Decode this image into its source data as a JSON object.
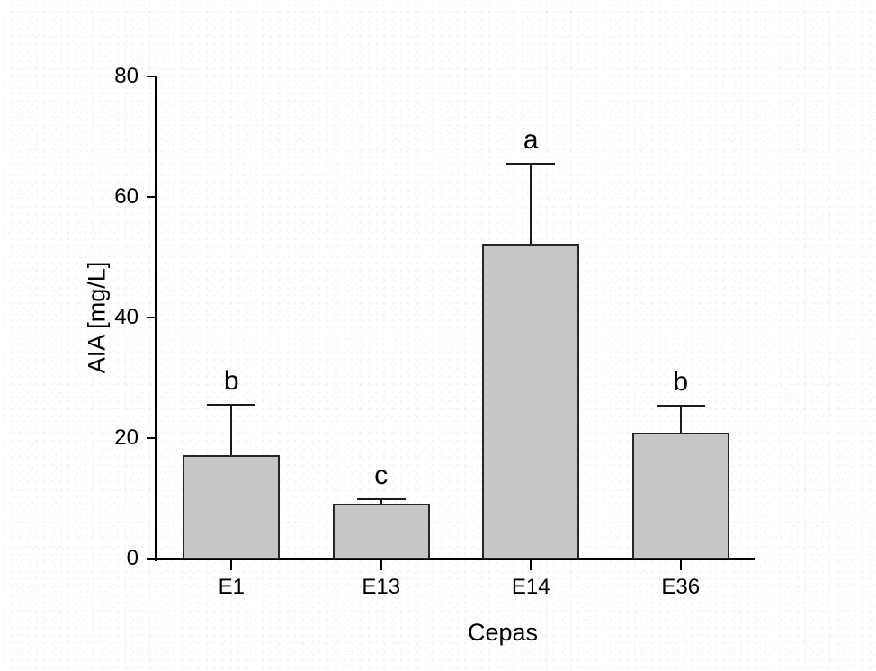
{
  "chart_data": {
    "type": "bar",
    "title": "",
    "xlabel": "Cepas",
    "ylabel": "AIA [mg/L]",
    "categories": [
      "E1",
      "E13",
      "E14",
      "E36"
    ],
    "values": [
      17.1,
      9.1,
      52.2,
      20.9
    ],
    "error_upper": [
      8.4,
      0.8,
      13.3,
      4.5
    ],
    "sig_letters": [
      "b",
      "c",
      "a",
      "b"
    ],
    "ylim": [
      0,
      80
    ],
    "yticks": [
      0,
      20,
      40,
      60,
      80
    ],
    "grid": false,
    "legend": "none",
    "bar_fill": "#c6c6c6",
    "bar_border": "#262626",
    "axis_color": "#000000",
    "text_color": "#000000"
  }
}
